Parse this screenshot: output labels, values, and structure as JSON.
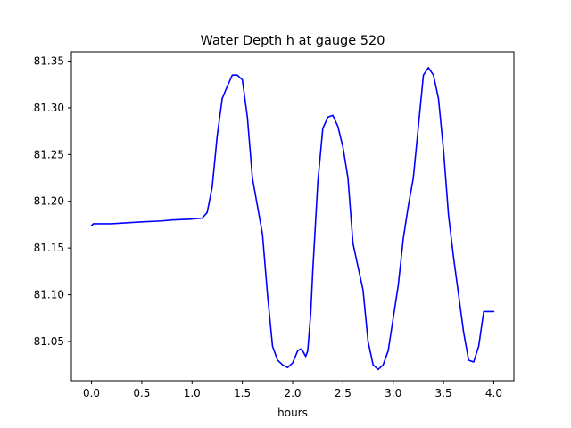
{
  "chart_data": {
    "type": "line",
    "title": "Water Depth h at gauge 520",
    "xlabel": "hours",
    "ylabel": "",
    "xlim": [
      -0.2,
      4.2
    ],
    "ylim": [
      81.008,
      81.36
    ],
    "grid": false,
    "x_ticks": [
      0.0,
      0.5,
      1.0,
      1.5,
      2.0,
      2.5,
      3.0,
      3.5,
      4.0
    ],
    "x_tick_labels": [
      "0.0",
      "0.5",
      "1.0",
      "1.5",
      "2.0",
      "2.5",
      "3.0",
      "3.5",
      "4.0"
    ],
    "y_ticks": [
      81.05,
      81.1,
      81.15,
      81.2,
      81.25,
      81.3,
      81.35
    ],
    "y_tick_labels": [
      "81.05",
      "81.10",
      "81.15",
      "81.20",
      "81.25",
      "81.30",
      "81.35"
    ],
    "series": [
      {
        "color": "#0000ff",
        "x": [
          0.0,
          0.02,
          0.2,
          0.5,
          0.7,
          0.8,
          1.0,
          1.1,
          1.15,
          1.2,
          1.25,
          1.3,
          1.35,
          1.4,
          1.45,
          1.5,
          1.55,
          1.6,
          1.65,
          1.7,
          1.75,
          1.8,
          1.85,
          1.9,
          1.95,
          2.0,
          2.05,
          2.08,
          2.1,
          2.13,
          2.15,
          2.18,
          2.2,
          2.25,
          2.3,
          2.35,
          2.4,
          2.45,
          2.5,
          2.55,
          2.6,
          2.65,
          2.7,
          2.75,
          2.8,
          2.85,
          2.9,
          2.95,
          3.0,
          3.05,
          3.1,
          3.15,
          3.2,
          3.25,
          3.3,
          3.35,
          3.4,
          3.45,
          3.5,
          3.55,
          3.6,
          3.65,
          3.7,
          3.75,
          3.8,
          3.85,
          3.9,
          3.95,
          4.0
        ],
        "y": [
          81.174,
          81.176,
          81.176,
          81.178,
          81.179,
          81.18,
          81.181,
          81.182,
          81.188,
          81.215,
          81.27,
          81.31,
          81.323,
          81.335,
          81.335,
          81.33,
          81.29,
          81.225,
          81.195,
          81.165,
          81.1,
          81.045,
          81.03,
          81.025,
          81.022,
          81.027,
          81.04,
          81.042,
          81.04,
          81.034,
          81.04,
          81.08,
          81.125,
          81.22,
          81.278,
          81.29,
          81.292,
          81.28,
          81.258,
          81.225,
          81.155,
          81.13,
          81.105,
          81.05,
          81.025,
          81.02,
          81.025,
          81.04,
          81.075,
          81.11,
          81.16,
          81.195,
          81.225,
          81.28,
          81.335,
          81.343,
          81.335,
          81.31,
          81.255,
          81.185,
          81.14,
          81.1,
          81.06,
          81.03,
          81.028,
          81.045,
          81.082,
          81.082,
          81.082
        ]
      }
    ]
  }
}
